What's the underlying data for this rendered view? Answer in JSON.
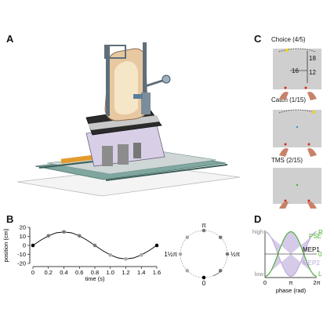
{
  "panels": {
    "A": {
      "label": "A"
    },
    "B": {
      "label": "B"
    },
    "C": {
      "label": "C"
    },
    "D": {
      "label": "D"
    }
  },
  "panel_c": {
    "screens": [
      {
        "title": "Choice (4/5)",
        "dim_vertical": "18",
        "dim_left": "16",
        "dim_right": "12"
      },
      {
        "title": "Catch (1/15)"
      },
      {
        "title": "TMS (2/15)"
      }
    ]
  },
  "colors": {
    "purple": "#b9a6d8",
    "green": "#4caf32",
    "screen_gray": "#cfcfcf",
    "hand": "#c9826a",
    "red_dot": "#d52b1e",
    "yellow_dot": "#f2d21b",
    "frame_teal": "#5e8f86",
    "black": "#000000"
  },
  "chart_data": [
    {
      "type": "line",
      "xlabel": "time (s)",
      "ylabel": "position (cm)",
      "xlim": [
        0,
        1.6
      ],
      "ylim": [
        -20,
        20
      ],
      "xticks": [
        "0",
        "0.2",
        "0.4",
        "0.6",
        "0.8",
        "1.0",
        "1.2",
        "1.4",
        "1.6"
      ],
      "yticks": [
        "-20",
        "-10",
        "0",
        "10",
        "20"
      ],
      "series": [
        {
          "x": [
            0,
            0.1,
            0.2,
            0.3,
            0.4,
            0.5,
            0.6,
            0.7,
            0.8,
            0.9,
            1.0,
            1.1,
            1.2,
            1.3,
            1.4,
            1.5,
            1.6
          ],
          "y": [
            0,
            5.7,
            10.6,
            13.9,
            15.0,
            13.9,
            10.6,
            5.7,
            0,
            -5.7,
            -10.6,
            -13.9,
            -15.0,
            -13.9,
            -10.6,
            -5.7,
            0
          ]
        }
      ],
      "markers": [
        {
          "x": 0,
          "y": 0,
          "color": "black"
        },
        {
          "x": 0.2,
          "y": 10.6,
          "color": "gray"
        },
        {
          "x": 0.4,
          "y": 15.0,
          "color": "gray"
        },
        {
          "x": 0.6,
          "y": 10.6,
          "color": "gray"
        },
        {
          "x": 0.8,
          "y": 0,
          "color": "gray"
        },
        {
          "x": 1.0,
          "y": -10.6,
          "color": "lightgray"
        },
        {
          "x": 1.2,
          "y": -15.0,
          "color": "lightgray"
        },
        {
          "x": 1.4,
          "y": -10.6,
          "color": "lightgray"
        },
        {
          "x": 1.6,
          "y": 0,
          "color": "black"
        }
      ]
    },
    {
      "type": "scatter",
      "labels": {
        "top": "π",
        "right": "½π",
        "left": "1½π",
        "bottom": "0"
      },
      "points_phase_deg": [
        0,
        45,
        90,
        135,
        180,
        225,
        270,
        315
      ]
    },
    {
      "type": "line",
      "xlabel": "phase (rad)",
      "xticks": [
        "0",
        "π",
        "2π"
      ],
      "ylabels": {
        "high": "high",
        "low": "low"
      },
      "right_labels": {
        "R": "R",
        "zero": "0",
        "L": "L"
      },
      "series": [
        {
          "name": "PSE",
          "color": "green"
        },
        {
          "name": "MEP1",
          "color": "purple"
        },
        {
          "name": "MEP2",
          "color": "purple"
        }
      ]
    }
  ]
}
